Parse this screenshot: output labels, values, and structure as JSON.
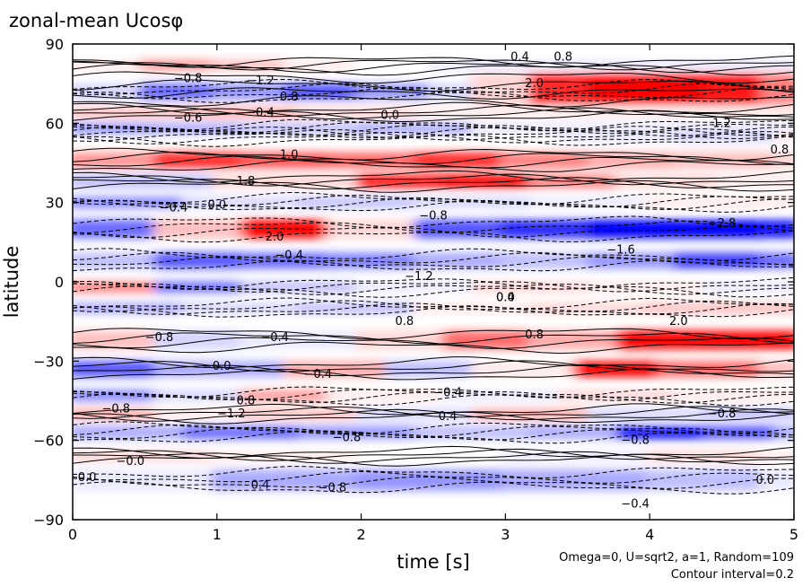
{
  "chart_data": {
    "type": "heatmap",
    "title": "zonal-mean Ucosφ",
    "xlabel": "time [s]",
    "ylabel": "latitude",
    "xlim": [
      0,
      5
    ],
    "ylim": [
      -90,
      90
    ],
    "x_ticks": [
      "0",
      "1",
      "2",
      "3",
      "4",
      "5"
    ],
    "y_ticks": [
      "90",
      "60",
      "30",
      "0",
      "−30",
      "−60",
      "−90"
    ],
    "annotation_lines": [
      "Omega=0, U=sqrt2, a=1, Random=109",
      "Contour interval=0.2"
    ],
    "colors": {
      "positive": "#ff0000",
      "negative": "#0000ff",
      "zero": "#ffffff"
    },
    "bands": [
      {
        "lat": 82,
        "width": 4,
        "cells": [
          [
            0,
            0.2
          ],
          [
            0.5,
            1.0
          ],
          [
            1.0,
            0.6
          ],
          [
            1.5,
            0.2
          ],
          [
            2.0,
            0.0
          ],
          [
            2.5,
            -0.2
          ]
        ]
      },
      {
        "lat": 72,
        "width": 6,
        "cells": [
          [
            0,
            -0.4
          ],
          [
            0.5,
            -1.4
          ],
          [
            1.0,
            -1.0
          ],
          [
            1.5,
            -1.6
          ],
          [
            2.0,
            -1.0
          ],
          [
            2.5,
            -0.4
          ]
        ]
      },
      {
        "lat": 73,
        "width": 12,
        "cells": [
          [
            2.8,
            0.4
          ],
          [
            3.2,
            2.0
          ],
          [
            3.6,
            2.4
          ],
          [
            4.0,
            2.6
          ],
          [
            4.4,
            2.2
          ],
          [
            4.8,
            1.2
          ]
        ]
      },
      {
        "lat": 64,
        "width": 4,
        "cells": [
          [
            0,
            0.6
          ],
          [
            0.8,
            0.8
          ],
          [
            1.6,
            0.4
          ],
          [
            2.4,
            0.2
          ]
        ]
      },
      {
        "lat": 58,
        "width": 4,
        "cells": [
          [
            0,
            -1.0
          ],
          [
            0.6,
            -0.8
          ],
          [
            1.2,
            -0.6
          ],
          [
            2.0,
            -0.8
          ],
          [
            2.8,
            -0.2
          ]
        ]
      },
      {
        "lat": 55,
        "width": 4,
        "cells": [
          [
            3.4,
            -0.2
          ],
          [
            4.2,
            -0.4
          ],
          [
            4.9,
            0.2
          ]
        ]
      },
      {
        "lat": 46,
        "width": 6,
        "cells": [
          [
            0,
            1.0
          ],
          [
            0.6,
            2.0
          ],
          [
            1.2,
            1.6
          ],
          [
            1.8,
            1.4
          ],
          [
            2.4,
            2.0
          ],
          [
            3.0,
            1.2
          ],
          [
            3.6,
            0.8
          ],
          [
            4.2,
            0.6
          ],
          [
            4.9,
            0.4
          ]
        ]
      },
      {
        "lat": 38,
        "width": 5,
        "cells": [
          [
            0,
            -0.6
          ],
          [
            1.0,
            0.4
          ],
          [
            2.0,
            2.2
          ],
          [
            2.6,
            2.6
          ],
          [
            3.2,
            1.2
          ],
          [
            3.8,
            0.4
          ],
          [
            4.5,
            0.2
          ]
        ]
      },
      {
        "lat": 30,
        "width": 4,
        "cells": [
          [
            0,
            -1.2
          ],
          [
            0.8,
            -0.4
          ],
          [
            1.6,
            -0.6
          ],
          [
            2.4,
            -0.4
          ],
          [
            3.2,
            -0.2
          ],
          [
            4.0,
            0.2
          ]
        ]
      },
      {
        "lat": 20,
        "width": 7,
        "cells": [
          [
            0,
            -1.4
          ],
          [
            0.6,
            0.6
          ],
          [
            1.2,
            2.4
          ],
          [
            1.8,
            0.4
          ],
          [
            2.4,
            -1.6
          ],
          [
            3.0,
            -2.0
          ],
          [
            3.6,
            -2.4
          ],
          [
            4.2,
            -2.8
          ],
          [
            4.8,
            -2.2
          ]
        ]
      },
      {
        "lat": 8,
        "width": 6,
        "cells": [
          [
            0,
            -0.6
          ],
          [
            0.6,
            -1.6
          ],
          [
            1.2,
            -1.4
          ],
          [
            1.8,
            -1.2
          ],
          [
            2.4,
            -0.8
          ],
          [
            3.0,
            -0.6
          ],
          [
            3.6,
            -1.0
          ],
          [
            4.2,
            -1.8
          ],
          [
            4.8,
            -1.4
          ]
        ]
      },
      {
        "lat": -2,
        "width": 4,
        "cells": [
          [
            0,
            1.2
          ],
          [
            0.6,
            -1.4
          ],
          [
            1.2,
            -0.6
          ],
          [
            2.0,
            -0.2
          ],
          [
            2.8,
            0.4
          ],
          [
            3.6,
            0.2
          ],
          [
            4.4,
            -0.2
          ]
        ]
      },
      {
        "lat": -10,
        "width": 4,
        "cells": [
          [
            0,
            -0.8
          ],
          [
            0.8,
            -0.4
          ],
          [
            1.6,
            -0.6
          ],
          [
            2.4,
            0.2
          ],
          [
            3.2,
            0.4
          ],
          [
            4.0,
            0.6
          ]
        ]
      },
      {
        "lat": -22,
        "width": 7,
        "cells": [
          [
            0,
            0.6
          ],
          [
            0.6,
            -0.4
          ],
          [
            1.2,
            -0.2
          ],
          [
            2.0,
            0.4
          ],
          [
            2.6,
            1.4
          ],
          [
            3.2,
            0.8
          ],
          [
            3.8,
            2.4
          ],
          [
            4.4,
            2.8
          ],
          [
            4.9,
            2.4
          ]
        ]
      },
      {
        "lat": -33,
        "width": 6,
        "cells": [
          [
            0,
            -1.6
          ],
          [
            0.6,
            -0.8
          ],
          [
            1.5,
            0.8
          ],
          [
            2.2,
            -0.6
          ],
          [
            2.8,
            0.2
          ],
          [
            3.5,
            2.6
          ],
          [
            4.1,
            1.4
          ],
          [
            4.8,
            0.6
          ]
        ]
      },
      {
        "lat": -43,
        "width": 4,
        "cells": [
          [
            0,
            -1.2
          ],
          [
            0.6,
            -0.4
          ],
          [
            1.2,
            1.0
          ],
          [
            1.8,
            0.2
          ],
          [
            2.6,
            -0.2
          ],
          [
            3.4,
            0.4
          ],
          [
            4.2,
            0.2
          ]
        ]
      },
      {
        "lat": -50,
        "width": 4,
        "cells": [
          [
            0,
            0.8
          ],
          [
            0.6,
            0.2
          ],
          [
            1.2,
            0.6
          ],
          [
            2.0,
            -0.4
          ],
          [
            2.8,
            0.8
          ],
          [
            3.6,
            -0.4
          ],
          [
            4.4,
            -0.6
          ]
        ]
      },
      {
        "lat": -57,
        "width": 5,
        "cells": [
          [
            0,
            -0.8
          ],
          [
            0.8,
            -1.4
          ],
          [
            1.6,
            -1.0
          ],
          [
            2.4,
            -0.6
          ],
          [
            3.2,
            -0.8
          ],
          [
            3.8,
            -2.2
          ],
          [
            4.4,
            -1.6
          ],
          [
            4.9,
            -0.8
          ]
        ]
      },
      {
        "lat": -66,
        "width": 4,
        "cells": [
          [
            0,
            0.4
          ],
          [
            1.0,
            0.2
          ],
          [
            2.0,
            0.0
          ],
          [
            3.0,
            -0.2
          ],
          [
            4.0,
            0.4
          ],
          [
            4.8,
            0.2
          ]
        ]
      },
      {
        "lat": -75,
        "width": 8,
        "cells": [
          [
            0,
            -0.2
          ],
          [
            1.0,
            -0.8
          ],
          [
            2.0,
            -1.0
          ],
          [
            3.0,
            -0.8
          ],
          [
            4.0,
            -0.6
          ],
          [
            4.8,
            -0.2
          ]
        ]
      }
    ],
    "contour_labels": [
      {
        "t": 3.1,
        "lat": 85,
        "text": "0.4"
      },
      {
        "t": 3.4,
        "lat": 85,
        "text": "0.8"
      },
      {
        "t": 3.2,
        "lat": 75,
        "text": "2.0"
      },
      {
        "t": 0.8,
        "lat": 77,
        "text": "−0.8"
      },
      {
        "t": 1.3,
        "lat": 76,
        "text": "−1.2"
      },
      {
        "t": 1.5,
        "lat": 70,
        "text": "0.8"
      },
      {
        "t": 1.3,
        "lat": 64,
        "text": "−0.4"
      },
      {
        "t": 0.8,
        "lat": 62,
        "text": "−0.6"
      },
      {
        "t": 2.2,
        "lat": 63,
        "text": "0.0"
      },
      {
        "t": 4.5,
        "lat": 60,
        "text": "1.2"
      },
      {
        "t": 1.5,
        "lat": 48,
        "text": "1.0"
      },
      {
        "t": 1.2,
        "lat": 38,
        "text": "1.8"
      },
      {
        "t": 4.9,
        "lat": 50,
        "text": "0.8"
      },
      {
        "t": 0.7,
        "lat": 28,
        "text": "−0.4"
      },
      {
        "t": 1.0,
        "lat": 29,
        "text": "0.0"
      },
      {
        "t": 2.5,
        "lat": 25,
        "text": "−0.8"
      },
      {
        "t": 4.5,
        "lat": 22,
        "text": "−2.8"
      },
      {
        "t": 1.4,
        "lat": 17,
        "text": "2.0"
      },
      {
        "t": 3.8,
        "lat": 12,
        "text": "−1.6"
      },
      {
        "t": 1.5,
        "lat": 10,
        "text": "−0.4"
      },
      {
        "t": 2.4,
        "lat": 2,
        "text": "−1.2"
      },
      {
        "t": 3.0,
        "lat": -6,
        "text": "0.0"
      },
      {
        "t": 3.0,
        "lat": -6,
        "text": "0.4"
      },
      {
        "t": 2.3,
        "lat": -15,
        "text": "0.8"
      },
      {
        "t": 4.2,
        "lat": -15,
        "text": "2.0"
      },
      {
        "t": 0.6,
        "lat": -21,
        "text": "−0.8"
      },
      {
        "t": 1.4,
        "lat": -21,
        "text": "−0.4"
      },
      {
        "t": 3.2,
        "lat": -20,
        "text": "0.8"
      },
      {
        "t": 1.0,
        "lat": -32,
        "text": "−0.0"
      },
      {
        "t": 1.7,
        "lat": -35,
        "text": "−0.4"
      },
      {
        "t": 2.6,
        "lat": -42,
        "text": "−0.4"
      },
      {
        "t": 1.2,
        "lat": -45,
        "text": "0.8"
      },
      {
        "t": 0.3,
        "lat": -48,
        "text": "−0.8"
      },
      {
        "t": 1.1,
        "lat": -50,
        "text": "−1.2"
      },
      {
        "t": 2.6,
        "lat": -51,
        "text": "0.4"
      },
      {
        "t": 4.5,
        "lat": -50,
        "text": "−0.8"
      },
      {
        "t": 1.9,
        "lat": -59,
        "text": "−0.8"
      },
      {
        "t": 0.4,
        "lat": -68,
        "text": "−0.0"
      },
      {
        "t": 0.1,
        "lat": -74,
        "text": "0.0"
      },
      {
        "t": 1.8,
        "lat": -78,
        "text": "−0.8"
      },
      {
        "t": 1.3,
        "lat": -77,
        "text": "0.4"
      },
      {
        "t": 4.8,
        "lat": -75,
        "text": "0.0"
      },
      {
        "t": 3.9,
        "lat": -84,
        "text": "−0.4"
      },
      {
        "t": 3.9,
        "lat": -60,
        "text": "−0.8"
      }
    ]
  }
}
